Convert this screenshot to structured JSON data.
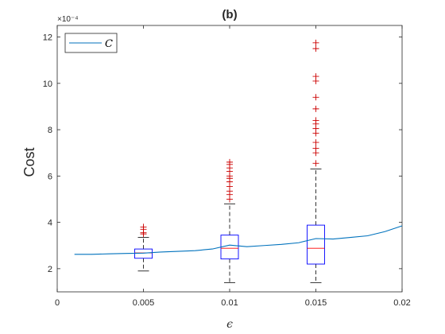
{
  "chart_data": {
    "type": "box",
    "title": "(b)",
    "xlabel": "ϵ",
    "ylabel": "Cost",
    "xlim": [
      0,
      0.02
    ],
    "ylim": [
      1.0,
      12.5
    ],
    "y_multiplier": "×10⁻⁴",
    "x_ticks": [
      0,
      0.005,
      0.01,
      0.015,
      0.02
    ],
    "x_tick_labels": [
      "0",
      "0.005",
      "0.01",
      "0.015",
      "0.02"
    ],
    "y_ticks": [
      2,
      4,
      6,
      8,
      10,
      12
    ],
    "y_tick_labels": [
      "2",
      "4",
      "6",
      "8",
      "10",
      "12"
    ],
    "grid": false,
    "legend": {
      "position": "top-left",
      "entries": [
        "C"
      ]
    },
    "colors": {
      "line": "#0072BD",
      "box": "#0000FF",
      "median": "#FF0000",
      "outlier": "#CC0000",
      "whisker": "#000000"
    },
    "boxes": [
      {
        "x": 0.005,
        "q1": 2.45,
        "median": 2.68,
        "q3": 2.85,
        "whisker_low": 1.9,
        "whisker_high": 3.35,
        "outliers": [
          3.5,
          3.55,
          3.7,
          3.8
        ]
      },
      {
        "x": 0.01,
        "q1": 2.42,
        "median": 2.88,
        "q3": 3.45,
        "whisker_low": 1.4,
        "whisker_high": 4.8,
        "outliers": [
          5.0,
          5.2,
          5.35,
          5.55,
          5.75,
          5.9,
          6.0,
          6.2,
          6.35,
          6.5,
          6.6
        ]
      },
      {
        "x": 0.015,
        "q1": 2.2,
        "median": 2.88,
        "q3": 3.88,
        "whisker_low": 1.4,
        "whisker_high": 6.3,
        "outliers": [
          6.55,
          7.0,
          7.2,
          7.45,
          7.85,
          8.05,
          8.25,
          8.4,
          8.9,
          9.4,
          10.1,
          10.3,
          11.5,
          11.75
        ]
      }
    ],
    "series": [
      {
        "name": "C",
        "x": [
          0.001,
          0.002,
          0.003,
          0.004,
          0.005,
          0.006,
          0.007,
          0.008,
          0.009,
          0.01,
          0.011,
          0.012,
          0.013,
          0.014,
          0.015,
          0.016,
          0.017,
          0.018,
          0.019,
          0.02
        ],
        "values": [
          2.62,
          2.62,
          2.64,
          2.66,
          2.67,
          2.72,
          2.75,
          2.78,
          2.85,
          3.02,
          2.95,
          3.0,
          3.05,
          3.12,
          3.3,
          3.28,
          3.35,
          3.42,
          3.6,
          3.85
        ]
      }
    ]
  }
}
